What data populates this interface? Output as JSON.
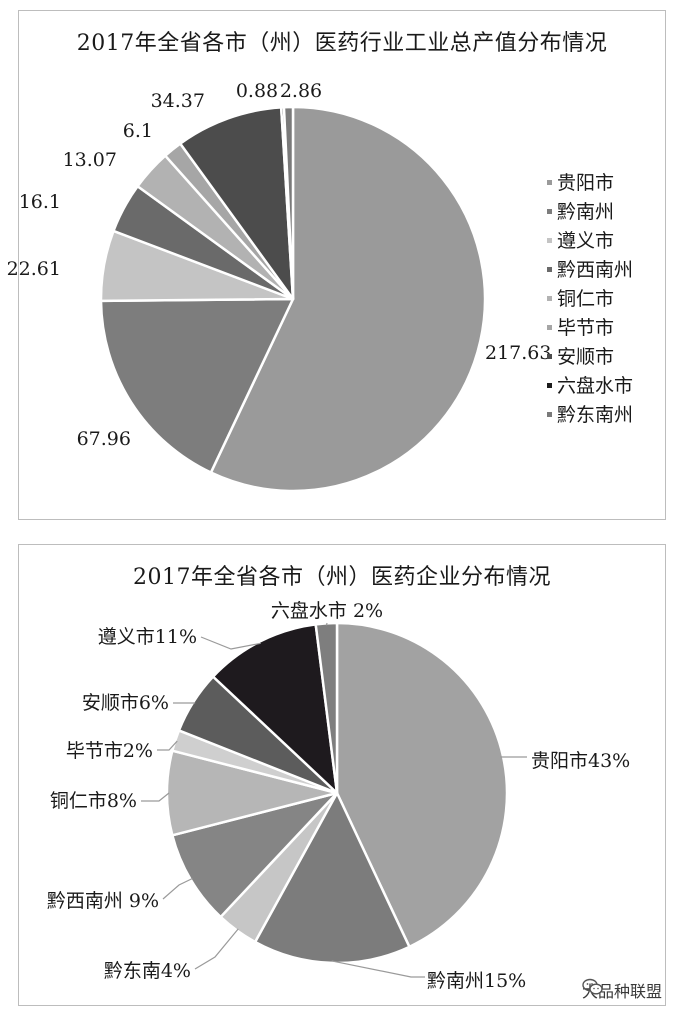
{
  "charts": [
    {
      "title": "2017年全省各市（州）医药行业工业总产值分布情况"
    },
    {
      "title": "2017年全省各市（州）医药企业分布情况"
    }
  ],
  "chart_data": [
    {
      "type": "pie",
      "title": "2017年全省各市（州）医药行业工业总产值分布情况",
      "categories": [
        "贵阳市",
        "黔南州",
        "遵义市",
        "黔西南州",
        "铜仁市",
        "毕节市",
        "安顺市",
        "六盘水市",
        "黔东南州"
      ],
      "values": [
        217.63,
        67.96,
        22.61,
        16.1,
        13.07,
        6.1,
        34.37,
        0.88,
        2.86
      ],
      "data_labels": [
        "217.63",
        "67.96",
        "22.61",
        "16.1",
        "13.07",
        "6.1",
        "34.37",
        "0.88",
        "2.86"
      ],
      "colors": [
        "#9a9a9a",
        "#7d7d7d",
        "#c4c4c4",
        "#6a6a6a",
        "#b2b2b2",
        "#a6a6a6",
        "#4c4c4c",
        "#1c1c1c",
        "#7a7a7a"
      ],
      "legend": "right",
      "start": "12 o'clock",
      "direction": "clockwise"
    },
    {
      "type": "pie",
      "title": "2017年全省各市（州）医药企业分布情况",
      "categories": [
        "贵阳市",
        "黔南州",
        "黔东南",
        "黔西南州",
        "铜仁市",
        "毕节市",
        "安顺市",
        "遵义市",
        "六盘水市"
      ],
      "values": [
        43,
        15,
        4,
        9,
        8,
        2,
        6,
        11,
        2
      ],
      "data_labels": [
        "贵阳市43%",
        "黔南州15%",
        "黔东南4%",
        "黔西南州 9%",
        "铜仁市8%",
        "毕节市2%",
        "安顺市6%",
        "遵义市11%",
        "六盘水市 2%"
      ],
      "colors": [
        "#a2a2a2",
        "#7c7c7c",
        "#c6c6c6",
        "#858585",
        "#b6b6b6",
        "#cfcfcf",
        "#5c5c5c",
        "#1e1a1e",
        "#7e7e7e"
      ],
      "legend": "none",
      "start": "12 o'clock",
      "direction": "clockwise"
    }
  ],
  "watermark": {
    "text": "大品种联盟",
    "icon": "wechat-icon"
  }
}
